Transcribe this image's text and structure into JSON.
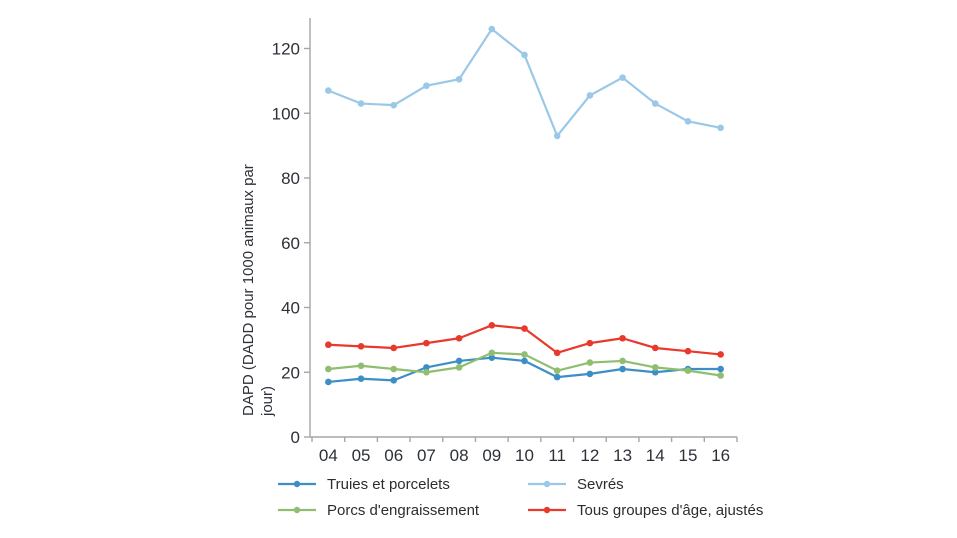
{
  "page": {
    "background": "#ffffff",
    "axis_color": "#a6a6a6",
    "text_color": "#2d3138",
    "legend_text_color": "#2d2d2d"
  },
  "chart_data": {
    "type": "line",
    "title": "",
    "xlabel": "",
    "ylabel": "DAPD (DADD pour 1000 animaux par jour)",
    "ylabel_lines": [
      "DAPD (DADD pour 1000 animaux par",
      "jour)"
    ],
    "categories": [
      "04",
      "05",
      "06",
      "07",
      "08",
      "09",
      "10",
      "11",
      "12",
      "13",
      "14",
      "15",
      "16"
    ],
    "y_ticks": [
      0,
      20,
      40,
      60,
      80,
      100,
      120
    ],
    "ylim": [
      0,
      129.5
    ],
    "grid": false,
    "legend_position": "bottom",
    "series": [
      {
        "name": "Truies et porcelets",
        "color": "#3e8ec6",
        "values": [
          17,
          18,
          17.5,
          21.5,
          23.5,
          24.5,
          23.5,
          18.5,
          19.5,
          21,
          20,
          21,
          21
        ]
      },
      {
        "name": "Sevrés",
        "color": "#9ac8e8",
        "values": [
          107,
          103,
          102.5,
          108.5,
          110.5,
          126,
          118,
          93,
          105.5,
          111,
          103,
          97.5,
          95.5
        ]
      },
      {
        "name": "Porcs d'engraissement",
        "color": "#8fbe70",
        "values": [
          21,
          22,
          21,
          20,
          21.5,
          26,
          25.5,
          20.5,
          23,
          23.5,
          21.5,
          20.5,
          19
        ]
      },
      {
        "name": "Tous groupes d'âge, ajustés",
        "color": "#e8392c",
        "values": [
          28.5,
          28,
          27.5,
          29,
          30.5,
          34.5,
          33.5,
          26,
          29,
          30.5,
          27.5,
          26.5,
          25.5
        ]
      }
    ]
  }
}
